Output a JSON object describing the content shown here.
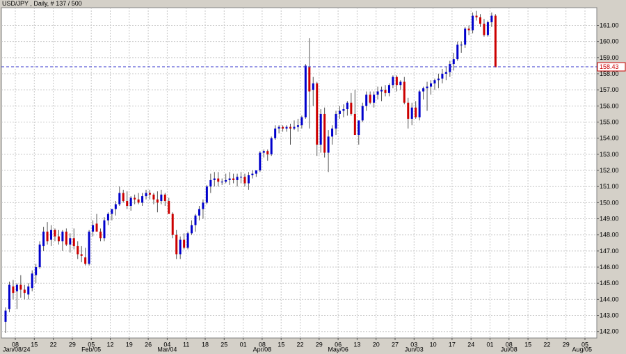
{
  "title": "USD/JPY , Daily, # 137 / 500",
  "chart_data": {
    "type": "candlestick",
    "title": "USD/JPY , Daily, # 137 / 500",
    "ylim": [
      141.6,
      162.1
    ],
    "y_ticks": [
      "142.00",
      "143.00",
      "144.00",
      "145.00",
      "146.00",
      "147.00",
      "148.00",
      "149.00",
      "150.00",
      "151.00",
      "152.00",
      "153.00",
      "154.00",
      "155.00",
      "156.00",
      "157.00",
      "158.00",
      "159.00",
      "160.00",
      "161.00"
    ],
    "x_ticks": [
      "08",
      "15",
      "22",
      "29",
      "05",
      "12",
      "19",
      "26",
      "04",
      "11",
      "18",
      "25",
      "01",
      "08",
      "15",
      "22",
      "29",
      "06",
      "13",
      "20",
      "27",
      "03",
      "10",
      "17",
      "24",
      "01",
      "08",
      "15",
      "22",
      "29",
      "05"
    ],
    "x_month_labels": [
      "Jan/08/24",
      "Feb/05",
      "Mar/04",
      "Apr/08",
      "May/06",
      "Jun/03",
      "Jul/08",
      "Aug/05"
    ],
    "current_price": "158.43",
    "current_price_value": 158.43,
    "grid": true,
    "colors": {
      "up": "#0000cc",
      "down": "#cc0000",
      "background": "#ffffff",
      "price_line": "#3333cc"
    },
    "candles": [
      [
        142.6,
        143.5,
        141.9,
        143.3
      ],
      [
        143.4,
        145.1,
        143.2,
        144.9
      ],
      [
        144.8,
        145.2,
        144.0,
        144.4
      ],
      [
        144.5,
        145.0,
        143.4,
        144.9
      ],
      [
        144.9,
        145.5,
        144.1,
        144.6
      ],
      [
        144.6,
        144.9,
        144.0,
        144.4
      ],
      [
        144.3,
        145.0,
        144.0,
        144.8
      ],
      [
        144.7,
        145.8,
        144.5,
        145.6
      ],
      [
        145.5,
        146.2,
        145.0,
        146.0
      ],
      [
        146.0,
        147.6,
        145.9,
        147.4
      ],
      [
        147.3,
        148.5,
        147.0,
        148.2
      ],
      [
        148.2,
        148.8,
        147.4,
        147.6
      ],
      [
        147.7,
        148.6,
        147.3,
        148.3
      ],
      [
        148.3,
        148.4,
        147.6,
        147.9
      ],
      [
        147.9,
        148.3,
        147.4,
        147.6
      ],
      [
        147.6,
        148.3,
        147.0,
        148.2
      ],
      [
        148.2,
        148.4,
        147.3,
        147.4
      ],
      [
        147.4,
        148.1,
        146.9,
        147.8
      ],
      [
        147.8,
        148.4,
        147.1,
        147.3
      ],
      [
        147.3,
        147.6,
        146.5,
        146.8
      ],
      [
        146.8,
        147.3,
        146.3,
        146.7
      ],
      [
        146.6,
        147.2,
        146.1,
        146.2
      ],
      [
        146.2,
        148.3,
        146.1,
        148.2
      ],
      [
        148.2,
        148.9,
        147.9,
        148.6
      ],
      [
        148.7,
        149.3,
        148.4,
        148.2
      ],
      [
        148.2,
        148.4,
        147.6,
        147.8
      ],
      [
        147.8,
        149.1,
        147.6,
        148.9
      ],
      [
        148.9,
        149.4,
        148.6,
        149.3
      ],
      [
        149.3,
        149.6,
        148.9,
        149.6
      ],
      [
        149.6,
        150.1,
        149.2,
        149.9
      ],
      [
        149.9,
        151.0,
        149.8,
        150.6
      ],
      [
        150.6,
        150.8,
        150.0,
        150.1
      ],
      [
        150.1,
        150.7,
        149.6,
        149.8
      ],
      [
        149.8,
        150.4,
        149.5,
        150.3
      ],
      [
        150.3,
        150.5,
        149.9,
        150.2
      ],
      [
        150.2,
        150.6,
        149.9,
        150.0
      ],
      [
        150.0,
        150.6,
        149.8,
        150.4
      ],
      [
        150.4,
        150.8,
        150.2,
        150.6
      ],
      [
        150.6,
        150.8,
        150.2,
        150.5
      ],
      [
        150.5,
        150.6,
        149.9,
        150.2
      ],
      [
        150.2,
        150.7,
        149.4,
        150.0
      ],
      [
        150.1,
        150.8,
        149.9,
        150.5
      ],
      [
        150.5,
        150.6,
        149.8,
        150.1
      ],
      [
        150.1,
        150.3,
        149.3,
        149.3
      ],
      [
        149.3,
        149.4,
        147.8,
        148.0
      ],
      [
        148.0,
        148.3,
        146.5,
        146.8
      ],
      [
        146.8,
        147.9,
        146.5,
        147.7
      ],
      [
        147.7,
        148.1,
        147.1,
        147.2
      ],
      [
        147.2,
        148.2,
        147.1,
        148.1
      ],
      [
        148.1,
        148.9,
        148.0,
        148.6
      ],
      [
        148.6,
        149.3,
        148.2,
        149.2
      ],
      [
        149.2,
        149.8,
        148.9,
        149.6
      ],
      [
        149.6,
        150.2,
        149.0,
        150.0
      ],
      [
        150.0,
        151.1,
        149.9,
        151.0
      ],
      [
        151.0,
        151.8,
        150.6,
        151.4
      ],
      [
        151.4,
        151.9,
        151.0,
        151.5
      ],
      [
        151.5,
        151.9,
        151.0,
        151.3
      ],
      [
        151.3,
        151.5,
        151.1,
        151.3
      ],
      [
        151.3,
        151.8,
        151.2,
        151.4
      ],
      [
        151.4,
        151.9,
        151.1,
        151.5
      ],
      [
        151.5,
        151.8,
        151.2,
        151.4
      ],
      [
        151.4,
        151.8,
        151.0,
        151.6
      ],
      [
        151.6,
        151.9,
        151.2,
        151.6
      ],
      [
        151.6,
        151.8,
        151.0,
        151.2
      ],
      [
        151.2,
        151.9,
        150.8,
        151.7
      ],
      [
        151.7,
        152.0,
        151.5,
        151.8
      ],
      [
        151.8,
        152.0,
        151.6,
        152.0
      ],
      [
        152.0,
        153.2,
        151.9,
        153.1
      ],
      [
        153.1,
        153.3,
        152.8,
        153.2
      ],
      [
        153.2,
        153.3,
        152.6,
        153.0
      ],
      [
        153.0,
        154.1,
        152.9,
        154.0
      ],
      [
        154.0,
        154.8,
        153.9,
        154.6
      ],
      [
        154.6,
        154.8,
        154.3,
        154.7
      ],
      [
        154.7,
        154.8,
        154.4,
        154.6
      ],
      [
        154.6,
        154.8,
        154.4,
        154.7
      ],
      [
        154.7,
        154.9,
        153.6,
        154.6
      ],
      [
        154.6,
        155.1,
        154.5,
        154.7
      ],
      [
        154.7,
        155.2,
        154.4,
        154.8
      ],
      [
        154.8,
        155.4,
        154.6,
        155.3
      ],
      [
        155.3,
        158.6,
        155.2,
        158.5
      ],
      [
        158.4,
        160.2,
        154.6,
        156.9
      ],
      [
        157.0,
        157.8,
        156.0,
        157.4
      ],
      [
        157.4,
        157.5,
        152.9,
        153.6
      ],
      [
        153.6,
        155.8,
        153.1,
        155.5
      ],
      [
        155.5,
        155.9,
        152.8,
        153.1
      ],
      [
        153.1,
        154.5,
        151.9,
        154.1
      ],
      [
        154.1,
        154.8,
        153.6,
        154.6
      ],
      [
        154.6,
        155.7,
        154.2,
        155.5
      ],
      [
        155.5,
        156.0,
        155.2,
        155.7
      ],
      [
        155.7,
        156.1,
        155.3,
        155.8
      ],
      [
        155.8,
        156.3,
        155.4,
        156.2
      ],
      [
        156.2,
        156.8,
        155.4,
        155.5
      ],
      [
        155.5,
        157.0,
        154.3,
        154.2
      ],
      [
        154.2,
        155.0,
        153.6,
        155.1
      ],
      [
        155.1,
        156.2,
        155.0,
        156.0
      ],
      [
        156.0,
        156.9,
        155.7,
        156.7
      ],
      [
        156.7,
        156.9,
        156.1,
        156.2
      ],
      [
        156.2,
        156.9,
        155.9,
        156.7
      ],
      [
        156.7,
        157.2,
        156.4,
        156.9
      ],
      [
        156.9,
        157.2,
        156.3,
        157.0
      ],
      [
        157.0,
        157.3,
        156.6,
        156.8
      ],
      [
        156.8,
        157.4,
        156.6,
        157.3
      ],
      [
        157.3,
        157.9,
        157.1,
        157.8
      ],
      [
        157.8,
        157.9,
        156.9,
        157.3
      ],
      [
        157.3,
        157.6,
        157.0,
        157.5
      ],
      [
        157.5,
        157.8,
        156.1,
        156.2
      ],
      [
        156.2,
        156.5,
        154.6,
        155.2
      ],
      [
        155.2,
        156.2,
        154.8,
        155.9
      ],
      [
        155.9,
        156.3,
        155.2,
        155.3
      ],
      [
        155.3,
        157.0,
        155.1,
        156.9
      ],
      [
        156.9,
        157.2,
        156.4,
        157.1
      ],
      [
        157.1,
        157.5,
        155.7,
        157.2
      ],
      [
        157.2,
        157.6,
        156.7,
        157.4
      ],
      [
        157.4,
        157.7,
        157.0,
        157.6
      ],
      [
        157.6,
        158.0,
        157.1,
        157.7
      ],
      [
        157.7,
        158.3,
        157.4,
        158.0
      ],
      [
        158.0,
        158.4,
        157.6,
        158.1
      ],
      [
        158.1,
        158.8,
        157.8,
        158.6
      ],
      [
        158.6,
        159.3,
        158.2,
        158.9
      ],
      [
        158.9,
        160.0,
        158.8,
        159.8
      ],
      [
        159.8,
        160.0,
        159.3,
        159.8
      ],
      [
        159.8,
        160.9,
        159.6,
        160.8
      ],
      [
        160.8,
        161.0,
        160.4,
        160.7
      ],
      [
        160.7,
        161.8,
        160.5,
        161.6
      ],
      [
        161.6,
        161.9,
        161.3,
        161.5
      ],
      [
        161.5,
        161.7,
        160.9,
        161.1
      ],
      [
        161.1,
        161.4,
        160.3,
        160.4
      ],
      [
        160.4,
        161.3,
        160.3,
        161.2
      ],
      [
        161.2,
        161.8,
        160.9,
        161.6
      ],
      [
        161.6,
        161.7,
        158.4,
        158.4
      ]
    ]
  }
}
